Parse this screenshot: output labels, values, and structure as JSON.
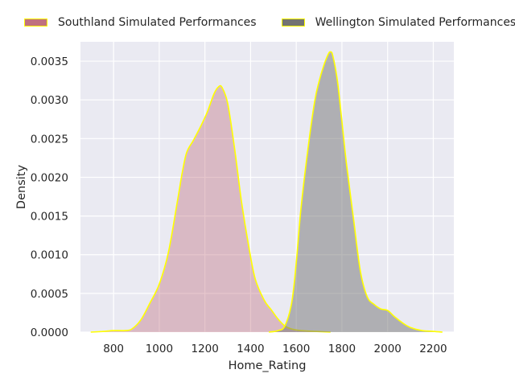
{
  "chart_data": {
    "type": "area",
    "title": "",
    "xlabel": "Home_Rating",
    "ylabel": "Density",
    "xlim": [
      655,
      2290
    ],
    "ylim": [
      0,
      0.00375
    ],
    "x_ticks": [
      800,
      1000,
      1200,
      1400,
      1600,
      1800,
      2000,
      2200
    ],
    "x_tick_labels": [
      "800",
      "1000",
      "1200",
      "1400",
      "1600",
      "1800",
      "2000",
      "2200"
    ],
    "y_ticks": [
      0,
      0.0005,
      0.001,
      0.0015,
      0.002,
      0.0025,
      0.003,
      0.0035
    ],
    "y_tick_labels": [
      "0.0000",
      "0.0005",
      "0.0010",
      "0.0015",
      "0.0020",
      "0.0025",
      "0.0030",
      "0.0035"
    ],
    "grid": true,
    "legend_position": "top",
    "background_color": "#eaeaf2",
    "grid_color": "#ffffff",
    "edge_color": "#ffff00",
    "series": [
      {
        "name": "Southland Simulated Performances",
        "color": "#c0717f",
        "fill_opacity": 0.4,
        "points": [
          [
            700,
            0
          ],
          [
            760,
            1e-05
          ],
          [
            800,
            2e-05
          ],
          [
            850,
            2e-05
          ],
          [
            880,
            4e-05
          ],
          [
            920,
            0.00016
          ],
          [
            960,
            0.00038
          ],
          [
            1000,
            0.00062
          ],
          [
            1040,
            0.00103
          ],
          [
            1080,
            0.0017
          ],
          [
            1100,
            0.00205
          ],
          [
            1120,
            0.00232
          ],
          [
            1150,
            0.00248
          ],
          [
            1180,
            0.00265
          ],
          [
            1210,
            0.00284
          ],
          [
            1240,
            0.00308
          ],
          [
            1260,
            0.00317
          ],
          [
            1275,
            0.00316
          ],
          [
            1300,
            0.00295
          ],
          [
            1330,
            0.00237
          ],
          [
            1360,
            0.00169
          ],
          [
            1390,
            0.00114
          ],
          [
            1420,
            0.00069
          ],
          [
            1460,
            0.00041
          ],
          [
            1490,
            0.00029
          ],
          [
            1520,
            0.00017
          ],
          [
            1550,
            8e-05
          ],
          [
            1580,
            4e-05
          ],
          [
            1620,
            2e-05
          ],
          [
            1680,
            1e-05
          ],
          [
            1750,
            0
          ]
        ]
      },
      {
        "name": "Wellington Simulated Performances",
        "color": "#737373",
        "fill_opacity": 0.5,
        "points": [
          [
            1480,
            0
          ],
          [
            1520,
            2e-05
          ],
          [
            1550,
            8e-05
          ],
          [
            1580,
            0.00038
          ],
          [
            1600,
            0.0009
          ],
          [
            1620,
            0.00158
          ],
          [
            1650,
            0.00234
          ],
          [
            1680,
            0.00297
          ],
          [
            1700,
            0.00324
          ],
          [
            1720,
            0.00344
          ],
          [
            1740,
            0.00359
          ],
          [
            1750,
            0.00362
          ],
          [
            1760,
            0.00357
          ],
          [
            1780,
            0.00325
          ],
          [
            1800,
            0.00272
          ],
          [
            1820,
            0.00217
          ],
          [
            1850,
            0.00148
          ],
          [
            1880,
            0.0008
          ],
          [
            1910,
            0.00046
          ],
          [
            1940,
            0.00036
          ],
          [
            1970,
            0.0003
          ],
          [
            2000,
            0.00028
          ],
          [
            2030,
            0.0002
          ],
          [
            2070,
            0.00011
          ],
          [
            2100,
            6e-05
          ],
          [
            2150,
            2e-05
          ],
          [
            2200,
            1e-05
          ],
          [
            2240,
            0
          ]
        ]
      }
    ]
  }
}
